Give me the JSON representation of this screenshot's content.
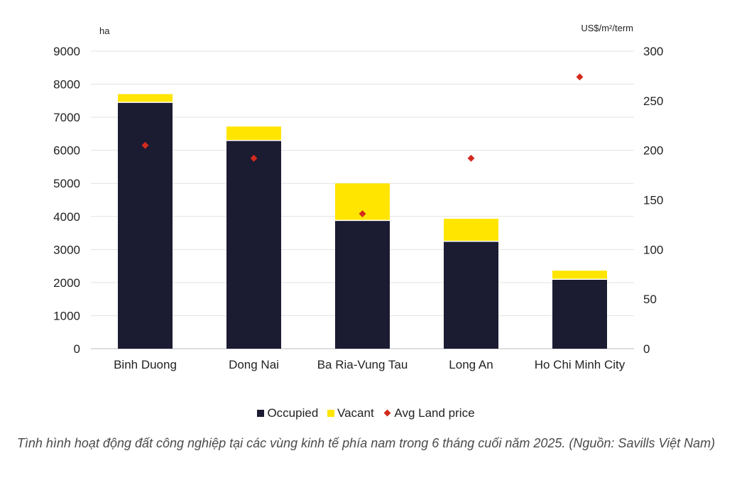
{
  "chart_data": {
    "type": "bar",
    "stacked": true,
    "categories": [
      "Binh Duong",
      "Dong Nai",
      "Ba Ria-Vung Tau",
      "Long An",
      "Ho Chi Minh City"
    ],
    "series": [
      {
        "name": "Occupied",
        "axis": "left",
        "color": "#1b1b32",
        "values": [
          7450,
          6300,
          3880,
          3250,
          2100
        ]
      },
      {
        "name": "Vacant",
        "axis": "left",
        "color": "#ffe500",
        "values": [
          250,
          420,
          1120,
          680,
          260
        ]
      },
      {
        "name": "Avg Land price",
        "axis": "right",
        "type": "scatter",
        "color": "#d42a1e",
        "values": [
          205,
          192,
          136,
          192,
          274
        ]
      }
    ],
    "y_left": {
      "label": "ha",
      "ylim": [
        0,
        9000
      ],
      "ticks": [
        "0",
        "1000",
        "2000",
        "3000",
        "4000",
        "5000",
        "6000",
        "7000",
        "8000",
        "9000"
      ]
    },
    "y_right": {
      "label": "US$/m²/term",
      "ylim": [
        0,
        300
      ],
      "ticks": [
        "0",
        "50",
        "100",
        "150",
        "200",
        "250",
        "300"
      ]
    },
    "grid": true,
    "legend_position": "bottom"
  },
  "legend": {
    "occupied": "Occupied",
    "vacant": "Vacant",
    "price": "Avg Land price"
  },
  "caption": "Tình hình hoạt động đất công nghiệp tại các vùng kinh tế phía nam trong 6 tháng cuối năm 2025. (Nguồn: Savills Việt Nam)"
}
